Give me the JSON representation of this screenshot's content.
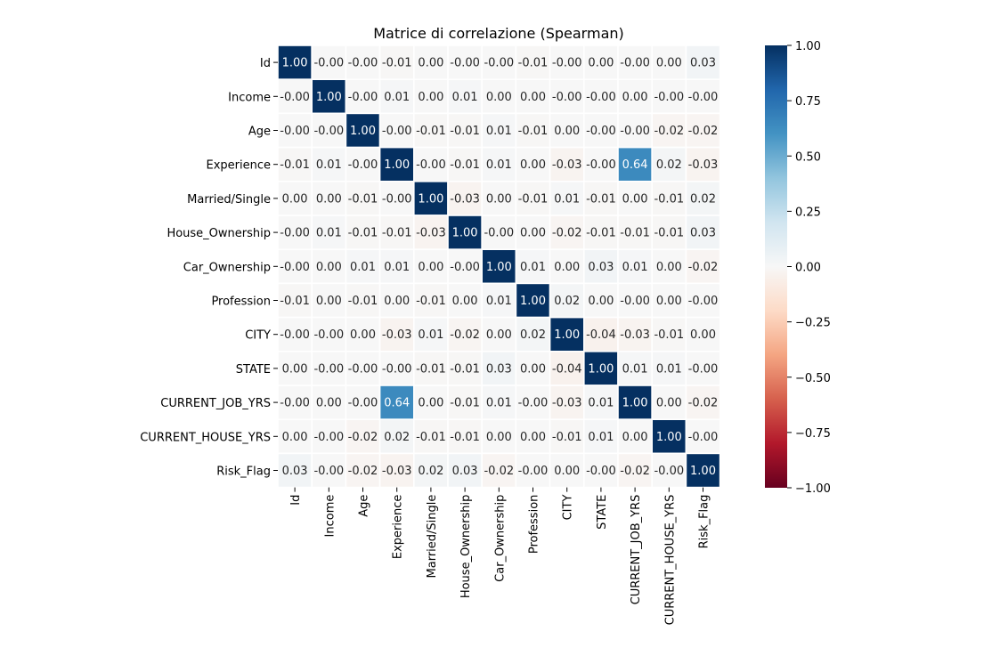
{
  "chart_data": {
    "type": "heatmap",
    "title": "Matrice di correlazione (Spearman)",
    "xlabel": "",
    "ylabel": "",
    "labels": [
      "Id",
      "Income",
      "Age",
      "Experience",
      "Married/Single",
      "House_Ownership",
      "Car_Ownership",
      "Profession",
      "CITY",
      "STATE",
      "CURRENT_JOB_YRS",
      "CURRENT_HOUSE_YRS",
      "Risk_Flag"
    ],
    "matrix": [
      [
        1.0,
        -0.0,
        -0.0,
        -0.01,
        0.0,
        -0.0,
        -0.0,
        -0.01,
        -0.0,
        0.0,
        -0.0,
        0.0,
        0.03
      ],
      [
        -0.0,
        1.0,
        -0.0,
        0.01,
        0.0,
        0.01,
        0.0,
        0.0,
        -0.0,
        -0.0,
        0.0,
        -0.0,
        -0.0
      ],
      [
        -0.0,
        -0.0,
        1.0,
        -0.0,
        -0.01,
        -0.01,
        0.01,
        -0.01,
        0.0,
        -0.0,
        -0.0,
        -0.02,
        -0.02
      ],
      [
        -0.01,
        0.01,
        -0.0,
        1.0,
        -0.0,
        -0.01,
        0.01,
        0.0,
        -0.03,
        -0.0,
        0.64,
        0.02,
        -0.03
      ],
      [
        0.0,
        0.0,
        -0.01,
        -0.0,
        1.0,
        -0.03,
        0.0,
        -0.01,
        0.01,
        -0.01,
        0.0,
        -0.01,
        0.02
      ],
      [
        -0.0,
        0.01,
        -0.01,
        -0.01,
        -0.03,
        1.0,
        -0.0,
        0.0,
        -0.02,
        -0.01,
        -0.01,
        -0.01,
        0.03
      ],
      [
        -0.0,
        0.0,
        0.01,
        0.01,
        0.0,
        -0.0,
        1.0,
        0.01,
        0.0,
        0.03,
        0.01,
        0.0,
        -0.02
      ],
      [
        -0.01,
        0.0,
        -0.01,
        0.0,
        -0.01,
        0.0,
        0.01,
        1.0,
        0.02,
        0.0,
        -0.0,
        0.0,
        -0.0
      ],
      [
        -0.0,
        -0.0,
        0.0,
        -0.03,
        0.01,
        -0.02,
        0.0,
        0.02,
        1.0,
        -0.04,
        -0.03,
        -0.01,
        0.0
      ],
      [
        0.0,
        -0.0,
        -0.0,
        -0.0,
        -0.01,
        -0.01,
        0.03,
        0.0,
        -0.04,
        1.0,
        0.01,
        0.01,
        -0.0
      ],
      [
        -0.0,
        0.0,
        -0.0,
        0.64,
        0.0,
        -0.01,
        0.01,
        -0.0,
        -0.03,
        0.01,
        1.0,
        0.0,
        -0.02
      ],
      [
        0.0,
        -0.0,
        -0.02,
        0.02,
        -0.01,
        -0.01,
        0.0,
        0.0,
        -0.01,
        0.01,
        0.0,
        1.0,
        -0.0
      ],
      [
        0.03,
        -0.0,
        -0.02,
        -0.03,
        0.02,
        0.03,
        -0.02,
        -0.0,
        0.0,
        -0.0,
        -0.02,
        -0.0,
        1.0
      ]
    ],
    "cell_labels": [
      [
        "1.00",
        "-0.00",
        "-0.00",
        "-0.01",
        "0.00",
        "-0.00",
        "-0.00",
        "-0.01",
        "-0.00",
        "0.00",
        "-0.00",
        "0.00",
        "0.03"
      ],
      [
        "-0.00",
        "1.00",
        "-0.00",
        "0.01",
        "0.00",
        "0.01",
        "0.00",
        "0.00",
        "-0.00",
        "-0.00",
        "0.00",
        "-0.00",
        "-0.00"
      ],
      [
        "-0.00",
        "-0.00",
        "1.00",
        "-0.00",
        "-0.01",
        "-0.01",
        "0.01",
        "-0.01",
        "0.00",
        "-0.00",
        "-0.00",
        "-0.02",
        "-0.02"
      ],
      [
        "-0.01",
        "0.01",
        "-0.00",
        "1.00",
        "-0.00",
        "-0.01",
        "0.01",
        "0.00",
        "-0.03",
        "-0.00",
        "0.64",
        "0.02",
        "-0.03"
      ],
      [
        "0.00",
        "0.00",
        "-0.01",
        "-0.00",
        "1.00",
        "-0.03",
        "0.00",
        "-0.01",
        "0.01",
        "-0.01",
        "0.00",
        "-0.01",
        "0.02"
      ],
      [
        "-0.00",
        "0.01",
        "-0.01",
        "-0.01",
        "-0.03",
        "1.00",
        "-0.00",
        "0.00",
        "-0.02",
        "-0.01",
        "-0.01",
        "-0.01",
        "0.03"
      ],
      [
        "-0.00",
        "0.00",
        "0.01",
        "0.01",
        "0.00",
        "-0.00",
        "1.00",
        "0.01",
        "0.00",
        "0.03",
        "0.01",
        "0.00",
        "-0.02"
      ],
      [
        "-0.01",
        "0.00",
        "-0.01",
        "0.00",
        "-0.01",
        "0.00",
        "0.01",
        "1.00",
        "0.02",
        "0.00",
        "-0.00",
        "0.00",
        "-0.00"
      ],
      [
        "-0.00",
        "-0.00",
        "0.00",
        "-0.03",
        "0.01",
        "-0.02",
        "0.00",
        "0.02",
        "1.00",
        "-0.04",
        "-0.03",
        "-0.01",
        "0.00"
      ],
      [
        "0.00",
        "-0.00",
        "-0.00",
        "-0.00",
        "-0.01",
        "-0.01",
        "0.03",
        "0.00",
        "-0.04",
        "1.00",
        "0.01",
        "0.01",
        "-0.00"
      ],
      [
        "-0.00",
        "0.00",
        "-0.00",
        "0.64",
        "0.00",
        "-0.01",
        "0.01",
        "-0.00",
        "-0.03",
        "0.01",
        "1.00",
        "0.00",
        "-0.02"
      ],
      [
        "0.00",
        "-0.00",
        "-0.02",
        "0.02",
        "-0.01",
        "-0.01",
        "0.00",
        "0.00",
        "-0.01",
        "0.01",
        "0.00",
        "1.00",
        "-0.00"
      ],
      [
        "0.03",
        "-0.00",
        "-0.02",
        "-0.03",
        "0.02",
        "0.03",
        "-0.02",
        "-0.00",
        "0.00",
        "-0.00",
        "-0.02",
        "-0.00",
        "1.00"
      ]
    ],
    "colorbar": {
      "colormap": "RdBu",
      "vmin": -1.0,
      "vmax": 1.0,
      "ticks": [
        "1.00",
        "0.75",
        "0.50",
        "0.25",
        "0.00",
        "−0.25",
        "−0.50",
        "−0.75",
        "−1.00"
      ],
      "tick_values": [
        1.0,
        0.75,
        0.5,
        0.25,
        0.0,
        -0.25,
        -0.5,
        -0.75,
        -1.0
      ]
    },
    "grid": false,
    "legend": "colorbar-right"
  }
}
